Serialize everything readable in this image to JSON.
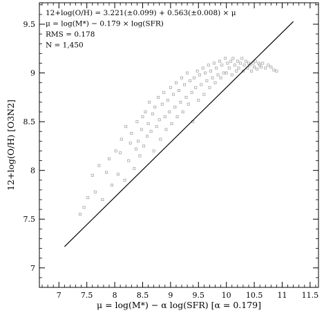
{
  "chart_data": {
    "type": "scatter",
    "xlabel": "μ = log(M*) − α log(SFR) [α = 0.179]",
    "ylabel": "12+log(O/H) [O3N2]",
    "xlim": [
      6.65,
      11.65
    ],
    "ylim": [
      6.8,
      9.72
    ],
    "xticks": [
      "7",
      "7.5",
      "8",
      "8.5",
      "9",
      "9.5",
      "10",
      "10.5",
      "11",
      "11.5"
    ],
    "yticks": [
      "7",
      "7.5",
      "8",
      "8.5",
      "9",
      "9.5"
    ],
    "annotations": [
      "12+log(O/H) = 3.221(±0.099) + 0.563(±0.008) × μ",
      "μ = log(M*) − 0.179 × log(SFR)",
      "RMS = 0.178",
      "N = 1,450"
    ],
    "grid": false,
    "marker_color": "#9a9a9a",
    "fit_color": "#000000",
    "series": [
      {
        "type": "line",
        "x": [
          7.1,
          11.2
        ],
        "y": [
          7.218,
          9.527
        ]
      },
      {
        "type": "scatter",
        "description_of_values": "sample of markers",
        "x": [
          7.38,
          7.45,
          7.52,
          7.6,
          7.65,
          7.72,
          7.78,
          7.85,
          7.9,
          7.95,
          8.02,
          8.06,
          8.1,
          8.12,
          8.18,
          8.2,
          8.25,
          8.28,
          8.3,
          8.35,
          8.38,
          8.4,
          8.42,
          8.45,
          8.48,
          8.5,
          8.52,
          8.55,
          8.58,
          8.6,
          8.62,
          8.65,
          8.68,
          8.7,
          8.72,
          8.75,
          8.78,
          8.8,
          8.82,
          8.85,
          8.88,
          8.9,
          8.92,
          8.95,
          8.98,
          9.0,
          9.02,
          9.05,
          9.08,
          9.1,
          9.12,
          9.15,
          9.18,
          9.2,
          9.22,
          9.25,
          9.28,
          9.3,
          9.32,
          9.35,
          9.38,
          9.4,
          9.42,
          9.45,
          9.48,
          9.5,
          9.52,
          9.55,
          9.58,
          9.6,
          9.62,
          9.65,
          9.68,
          9.7,
          9.72,
          9.75,
          9.78,
          9.8,
          9.82,
          9.85,
          9.88,
          9.9,
          9.92,
          9.95,
          9.98,
          10.0,
          10.02,
          10.05,
          10.08,
          10.1,
          10.12,
          10.15,
          10.18,
          10.2,
          10.22,
          10.25,
          10.28,
          10.3,
          10.32,
          10.35,
          10.38,
          10.4,
          10.42,
          10.45,
          10.48,
          10.5,
          10.52,
          10.55,
          10.58,
          10.6,
          10.62,
          10.65,
          10.7,
          10.75,
          10.8,
          10.85,
          10.9
        ],
        "y": [
          7.55,
          7.62,
          7.72,
          7.95,
          7.78,
          8.05,
          7.7,
          7.98,
          8.12,
          7.85,
          8.2,
          7.96,
          8.18,
          8.32,
          7.9,
          8.45,
          8.1,
          8.28,
          8.38,
          8.02,
          8.22,
          8.5,
          8.3,
          8.15,
          8.42,
          8.55,
          8.25,
          8.6,
          8.35,
          8.48,
          8.7,
          8.4,
          8.58,
          8.2,
          8.65,
          8.45,
          8.75,
          8.52,
          8.32,
          8.68,
          8.8,
          8.55,
          8.42,
          8.72,
          8.6,
          8.85,
          8.48,
          8.78,
          8.65,
          8.9,
          8.55,
          8.82,
          8.7,
          8.95,
          8.6,
          8.88,
          8.75,
          9.0,
          8.68,
          8.92,
          8.8,
          8.5,
          8.95,
          8.85,
          9.02,
          8.72,
          8.98,
          8.88,
          9.05,
          8.78,
          9.0,
          8.92,
          9.08,
          8.85,
          9.02,
          8.95,
          9.1,
          8.9,
          9.05,
          8.98,
          9.12,
          8.95,
          9.08,
          9.0,
          9.15,
          9.0,
          9.1,
          9.05,
          9.12,
          8.98,
          9.15,
          9.08,
          9.02,
          9.12,
          9.05,
          9.1,
          9.15,
          9.02,
          9.08,
          9.12,
          9.05,
          9.1,
          9.08,
          9.02,
          9.1,
          9.06,
          9.12,
          9.04,
          9.1,
          9.08,
          9.06,
          9.1,
          9.05,
          9.08,
          9.06,
          9.03,
          9.02
        ]
      }
    ]
  }
}
